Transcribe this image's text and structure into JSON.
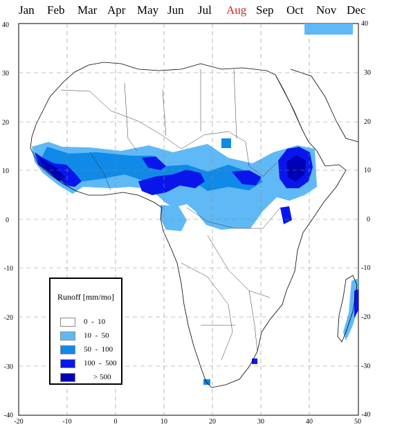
{
  "months": {
    "items": [
      "Jan",
      "Feb",
      "Mar",
      "Apr",
      "May",
      "Jun",
      "Jul",
      "Aug",
      "Sep",
      "Oct",
      "Nov",
      "Dec"
    ],
    "selected": "Aug",
    "selected_color": "#e02020"
  },
  "map": {
    "x_ticks": [
      "-20",
      "-10",
      "0",
      "10",
      "20",
      "30",
      "40",
      "50"
    ],
    "y_ticks": [
      "40",
      "30",
      "20",
      "10",
      "0",
      "-10",
      "-20",
      "-30",
      "-40"
    ],
    "lon_range": [
      -20,
      50
    ],
    "lat_range": [
      -40,
      40
    ],
    "grid": true
  },
  "legend": {
    "title": "Runoff [mm/mo]",
    "items": [
      {
        "label": "0  -  10",
        "color": "#ffffff"
      },
      {
        "label": "10  -  50",
        "color": "#5fb9f6"
      },
      {
        "label": "50  -  100",
        "color": "#0f8ae8"
      },
      {
        "label": "100  -  500",
        "color": "#0816ec"
      },
      {
        "label": "> 500",
        "color": "#0000b4"
      }
    ]
  },
  "colors": {
    "c1": "#5fb9f6",
    "c2": "#0f8ae8",
    "c3": "#0816ec",
    "c4": "#0000b4"
  }
}
